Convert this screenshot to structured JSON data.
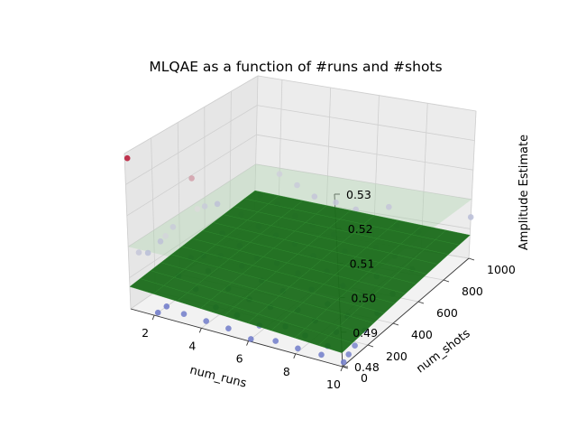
{
  "chart_data": {
    "type": "scatter",
    "title": "MLQAE as a function of #runs and #shots",
    "xlabel": "num_runs",
    "ylabel": "num_shots",
    "zlabel": "Amplitude Estimate",
    "xlim": [
      1,
      10
    ],
    "ylim": [
      0,
      1000
    ],
    "zlim": [
      0.48,
      0.53
    ],
    "x_ticks": [
      "2",
      "4",
      "6",
      "8",
      "10"
    ],
    "y_ticks": [
      "0",
      "200",
      "400",
      "600",
      "800",
      "1000"
    ],
    "z_ticks": [
      "0.48",
      "0.49",
      "0.50",
      "0.51",
      "0.52",
      "0.53"
    ],
    "grid": true,
    "colormap": "coolwarm",
    "surface_color": "#1a6b1a",
    "reference_plane": {
      "z": 0.5,
      "color": "#a9d3a9"
    },
    "points": [
      {
        "x": 1,
        "y": 20,
        "z": 0.528
      },
      {
        "x": 1,
        "y": 80,
        "z": 0.496
      },
      {
        "x": 1,
        "y": 150,
        "z": 0.494
      },
      {
        "x": 1,
        "y": 250,
        "z": 0.495
      },
      {
        "x": 1,
        "y": 350,
        "z": 0.497
      },
      {
        "x": 1,
        "y": 500,
        "z": 0.509
      },
      {
        "x": 1,
        "y": 600,
        "z": 0.497
      },
      {
        "x": 1,
        "y": 700,
        "z": 0.495
      },
      {
        "x": 1.5,
        "y": 200,
        "z": 0.499
      },
      {
        "x": 1.5,
        "y": 450,
        "z": 0.501
      },
      {
        "x": 2,
        "y": 30,
        "z": 0.48
      },
      {
        "x": 2,
        "y": 100,
        "z": 0.48
      },
      {
        "x": 2,
        "y": 200,
        "z": 0.487
      },
      {
        "x": 2,
        "y": 300,
        "z": 0.49
      },
      {
        "x": 2,
        "y": 400,
        "z": 0.488
      },
      {
        "x": 2,
        "y": 550,
        "z": 0.491
      },
      {
        "x": 2,
        "y": 700,
        "z": 0.493
      },
      {
        "x": 2,
        "y": 850,
        "z": 0.495
      },
      {
        "x": 2,
        "y": 1000,
        "z": 0.498
      },
      {
        "x": 3,
        "y": 50,
        "z": 0.481
      },
      {
        "x": 3,
        "y": 150,
        "z": 0.486
      },
      {
        "x": 3,
        "y": 250,
        "z": 0.489
      },
      {
        "x": 3,
        "y": 350,
        "z": 0.491
      },
      {
        "x": 3,
        "y": 500,
        "z": 0.49
      },
      {
        "x": 3,
        "y": 650,
        "z": 0.492
      },
      {
        "x": 3,
        "y": 800,
        "z": 0.495
      },
      {
        "x": 3,
        "y": 950,
        "z": 0.497
      },
      {
        "x": 4,
        "y": 40,
        "z": 0.481
      },
      {
        "x": 4,
        "y": 120,
        "z": 0.483
      },
      {
        "x": 4,
        "y": 220,
        "z": 0.486
      },
      {
        "x": 4,
        "y": 330,
        "z": 0.49
      },
      {
        "x": 4,
        "y": 450,
        "z": 0.489
      },
      {
        "x": 4,
        "y": 600,
        "z": 0.492
      },
      {
        "x": 4,
        "y": 750,
        "z": 0.494
      },
      {
        "x": 4,
        "y": 900,
        "z": 0.496
      },
      {
        "x": 5,
        "y": 30,
        "z": 0.481
      },
      {
        "x": 5,
        "y": 100,
        "z": 0.483
      },
      {
        "x": 5,
        "y": 200,
        "z": 0.485
      },
      {
        "x": 5,
        "y": 300,
        "z": 0.488
      },
      {
        "x": 5,
        "y": 420,
        "z": 0.49
      },
      {
        "x": 5,
        "y": 560,
        "z": 0.492
      },
      {
        "x": 5,
        "y": 700,
        "z": 0.494
      },
      {
        "x": 5,
        "y": 880,
        "z": 0.496
      },
      {
        "x": 6,
        "y": 20,
        "z": 0.48
      },
      {
        "x": 6,
        "y": 90,
        "z": 0.482
      },
      {
        "x": 6,
        "y": 180,
        "z": 0.485
      },
      {
        "x": 6,
        "y": 280,
        "z": 0.487
      },
      {
        "x": 6,
        "y": 400,
        "z": 0.489
      },
      {
        "x": 6,
        "y": 520,
        "z": 0.491
      },
      {
        "x": 6,
        "y": 680,
        "z": 0.493
      },
      {
        "x": 6,
        "y": 850,
        "z": 0.496
      },
      {
        "x": 7,
        "y": 30,
        "z": 0.481
      },
      {
        "x": 7,
        "y": 110,
        "z": 0.483
      },
      {
        "x": 7,
        "y": 210,
        "z": 0.485
      },
      {
        "x": 7,
        "y": 320,
        "z": 0.488
      },
      {
        "x": 7,
        "y": 440,
        "z": 0.49
      },
      {
        "x": 7,
        "y": 580,
        "z": 0.492
      },
      {
        "x": 7,
        "y": 740,
        "z": 0.494
      },
      {
        "x": 7,
        "y": 920,
        "z": 0.496
      },
      {
        "x": 8,
        "y": 20,
        "z": 0.481
      },
      {
        "x": 8,
        "y": 80,
        "z": 0.483
      },
      {
        "x": 8,
        "y": 160,
        "z": 0.485
      },
      {
        "x": 8,
        "y": 260,
        "z": 0.487
      },
      {
        "x": 8,
        "y": 380,
        "z": 0.489
      },
      {
        "x": 8,
        "y": 500,
        "z": 0.491
      },
      {
        "x": 8,
        "y": 640,
        "z": 0.493
      },
      {
        "x": 8,
        "y": 800,
        "z": 0.495
      },
      {
        "x": 9,
        "y": 20,
        "z": 0.481
      },
      {
        "x": 9,
        "y": 70,
        "z": 0.482
      },
      {
        "x": 9,
        "y": 140,
        "z": 0.484
      },
      {
        "x": 9,
        "y": 230,
        "z": 0.486
      },
      {
        "x": 9,
        "y": 340,
        "z": 0.489
      },
      {
        "x": 9,
        "y": 460,
        "z": 0.491
      },
      {
        "x": 9,
        "y": 600,
        "z": 0.493
      },
      {
        "x": 9,
        "y": 780,
        "z": 0.495
      },
      {
        "x": 10,
        "y": 10,
        "z": 0.481
      },
      {
        "x": 10,
        "y": 50,
        "z": 0.482
      },
      {
        "x": 10,
        "y": 100,
        "z": 0.483
      },
      {
        "x": 10,
        "y": 180,
        "z": 0.485
      },
      {
        "x": 10,
        "y": 280,
        "z": 0.487
      },
      {
        "x": 10,
        "y": 400,
        "z": 0.489
      },
      {
        "x": 10,
        "y": 550,
        "z": 0.492
      },
      {
        "x": 10,
        "y": 1000,
        "z": 0.494
      }
    ]
  }
}
